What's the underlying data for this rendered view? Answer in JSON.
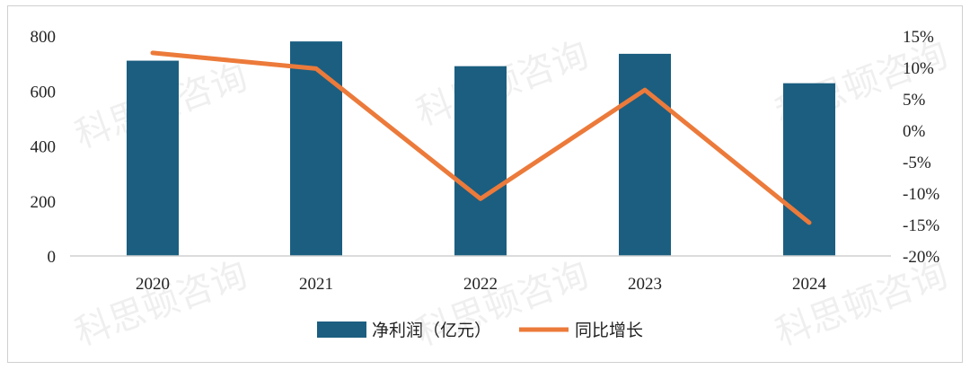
{
  "watermark": "科思顿咨询",
  "chart_data": {
    "type": "bar",
    "categories": [
      "2020",
      "2021",
      "2022",
      "2023",
      "2024"
    ],
    "series": [
      {
        "name": "净利润（亿元）",
        "type": "bar",
        "axis": "left",
        "color": "#1b5e80",
        "values": [
          710,
          780,
          690,
          735,
          628
        ]
      },
      {
        "name": "同比增长",
        "type": "line",
        "axis": "right",
        "color": "#ec7a3a",
        "values": [
          12.3,
          9.8,
          -10.9,
          6.4,
          -14.7
        ]
      }
    ],
    "y_left": {
      "min": 0,
      "max": 800,
      "ticks": [
        0,
        200,
        400,
        600,
        800
      ]
    },
    "y_right": {
      "min": -20,
      "max": 15,
      "ticks": [
        -20,
        -15,
        -10,
        -5,
        0,
        5,
        10,
        15
      ],
      "unit": "%"
    },
    "legend_position": "bottom",
    "grid": false
  }
}
